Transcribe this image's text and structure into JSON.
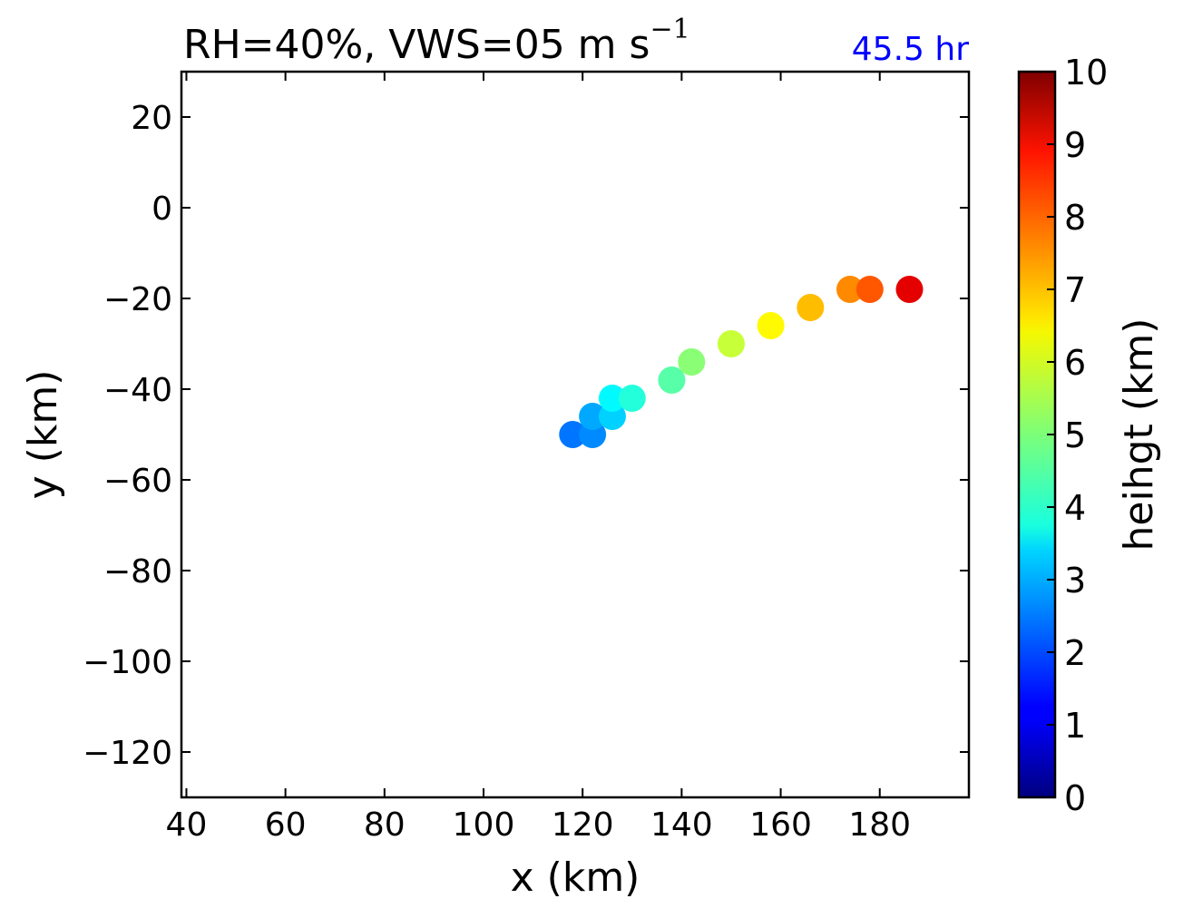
{
  "title": {
    "text": "RH=40%, VWS=05 m s",
    "superscript": "−1",
    "time_label": "45.5 hr",
    "time_color": "#0000ff"
  },
  "chart_data": {
    "type": "scatter",
    "xlabel": "x (km)",
    "ylabel": "y (km)",
    "xlim": [
      39,
      198
    ],
    "ylim": [
      -130,
      30
    ],
    "xticks": [
      40,
      60,
      80,
      100,
      120,
      140,
      160,
      180
    ],
    "yticks": [
      20,
      0,
      -20,
      -40,
      -60,
      -80,
      -100,
      -120
    ],
    "grid": false,
    "colormap": "jet",
    "points": [
      {
        "x": 118,
        "y": -50,
        "height": 2.4
      },
      {
        "x": 122,
        "y": -50,
        "height": 2.6
      },
      {
        "x": 122,
        "y": -46,
        "height": 2.9
      },
      {
        "x": 126,
        "y": -46,
        "height": 3.3
      },
      {
        "x": 126,
        "y": -42,
        "height": 3.7
      },
      {
        "x": 130,
        "y": -42,
        "height": 4.1
      },
      {
        "x": 138,
        "y": -38,
        "height": 4.6
      },
      {
        "x": 142,
        "y": -34,
        "height": 5.1
      },
      {
        "x": 150,
        "y": -30,
        "height": 5.7
      },
      {
        "x": 158,
        "y": -26,
        "height": 6.3
      },
      {
        "x": 166,
        "y": -22,
        "height": 6.9
      },
      {
        "x": 174,
        "y": -18,
        "height": 7.4
      },
      {
        "x": 178,
        "y": -18,
        "height": 7.9
      },
      {
        "x": 186,
        "y": -18,
        "height": 9.0
      }
    ],
    "colorbar": {
      "label": "heihgt (km)",
      "min": 0,
      "max": 10,
      "ticks": [
        0,
        1,
        2,
        3,
        4,
        5,
        6,
        7,
        8,
        9,
        10
      ]
    }
  }
}
